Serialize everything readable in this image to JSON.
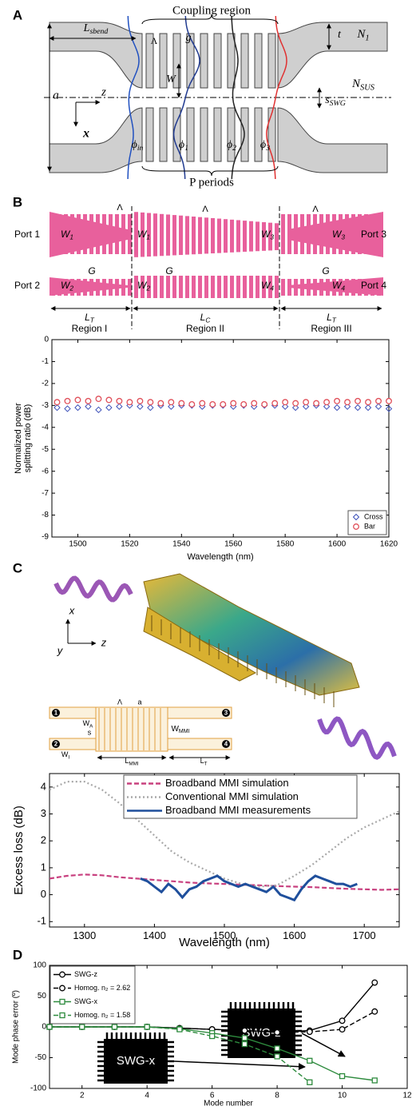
{
  "diagram_a": {
    "panel": "A",
    "coupling_region": "Coupling region",
    "l_sbend": [
      "L",
      "sbend"
    ],
    "lambda": "Λ",
    "g": "g",
    "t": "t",
    "n1": [
      "N",
      "1"
    ],
    "nsus": [
      "N",
      "SUS"
    ],
    "a": "a",
    "z": "z",
    "x": "x",
    "w": "W",
    "sswg": [
      "s",
      "SWG"
    ],
    "phi_in": [
      "ϕ",
      "in"
    ],
    "phi_1": [
      "ϕ",
      "1"
    ],
    "phi_2": [
      "ϕ",
      "2"
    ],
    "phi_3": [
      "ϕ",
      "3"
    ],
    "p_periods": "P periods"
  },
  "diagram_b": {
    "panel": "B",
    "port1": "Port 1",
    "port2": "Port 2",
    "port3": "Port 3",
    "port4": "Port 4",
    "w1": [
      "W",
      "1"
    ],
    "w2": [
      "W",
      "2"
    ],
    "w3": [
      "W",
      "3"
    ],
    "w4": [
      "W",
      "4"
    ],
    "g": "G",
    "lambda": "Λ",
    "lt": [
      "L",
      "T"
    ],
    "lc": [
      "L",
      "C"
    ],
    "region1": "Region I",
    "region2": "Region II",
    "region3": "Region III"
  },
  "diagram_c": {
    "panel": "C",
    "x": "x",
    "y": "y",
    "z": "z",
    "lambda": "Λ",
    "a": "a",
    "wa": [
      "W",
      "A"
    ],
    "s": "s",
    "wmmi": [
      "W",
      "MMI"
    ],
    "wi": [
      "W",
      "I"
    ],
    "lmmi": [
      "L",
      "MMI"
    ],
    "lt": [
      "L",
      "T"
    ],
    "ports": [
      "1",
      "2",
      "3",
      "4"
    ]
  },
  "chart_data": [
    {
      "type": "scatter",
      "xlabel": "Wavelength (nm)",
      "ylabel": [
        "Normalized power",
        "splitting ratio (dB)"
      ],
      "xlim": [
        1490,
        1620
      ],
      "ylim": [
        -9,
        0
      ],
      "xticks": [
        1500,
        1520,
        1540,
        1560,
        1580,
        1600,
        1620
      ],
      "yticks": [
        -9,
        -8,
        -7,
        -6,
        -5,
        -4,
        -3,
        -2,
        -1,
        0
      ],
      "legend": "lower right",
      "x": [
        1492,
        1496,
        1500,
        1504,
        1508,
        1512,
        1516,
        1520,
        1524,
        1528,
        1532,
        1536,
        1540,
        1544,
        1548,
        1552,
        1556,
        1560,
        1564,
        1568,
        1572,
        1576,
        1580,
        1584,
        1588,
        1592,
        1596,
        1600,
        1604,
        1608,
        1612,
        1616,
        1620
      ],
      "series": [
        {
          "name": "Cross",
          "color": "#3b4fb8",
          "marker": "diamond",
          "style": "none",
          "values": [
            -3.1,
            -3.15,
            -3.1,
            -3.05,
            -3.2,
            -3.1,
            -3.05,
            -3.0,
            -3.05,
            -3.1,
            -3.0,
            -3.05,
            -3.0,
            -3.0,
            -3.05,
            -3.0,
            -3.0,
            -3.05,
            -3.0,
            -3.05,
            -3.0,
            -3.0,
            -3.05,
            -3.1,
            -3.05,
            -3.0,
            -3.05,
            -3.1,
            -3.05,
            -3.1,
            -3.1,
            -3.05,
            -3.15
          ]
        },
        {
          "name": "Bar",
          "color": "#e0505a",
          "marker": "circle",
          "style": "none",
          "values": [
            -2.85,
            -2.8,
            -2.75,
            -2.8,
            -2.7,
            -2.75,
            -2.8,
            -2.85,
            -2.8,
            -2.85,
            -2.9,
            -2.85,
            -2.9,
            -2.95,
            -2.9,
            -2.95,
            -2.95,
            -2.9,
            -2.95,
            -2.9,
            -2.95,
            -2.9,
            -2.85,
            -2.9,
            -2.85,
            -2.9,
            -2.85,
            -2.8,
            -2.85,
            -2.8,
            -2.85,
            -2.8,
            -2.8
          ]
        }
      ]
    },
    {
      "type": "line",
      "xlabel": "Wavelength (nm)",
      "ylabel": "Excess loss (dB)",
      "xlim": [
        1250,
        1750
      ],
      "ylim": [
        -1.2,
        4.5
      ],
      "xticks": [
        1300,
        1400,
        1500,
        1600,
        1700
      ],
      "yticks": [
        -1,
        0,
        1,
        2,
        3,
        4
      ],
      "legend": "upper center",
      "series": [
        {
          "name": "Broadband MMI simulation",
          "color": "#c8407f",
          "style": "dashed",
          "x": [
            1250,
            1275,
            1300,
            1325,
            1350,
            1375,
            1400,
            1425,
            1450,
            1475,
            1500,
            1525,
            1550,
            1575,
            1600,
            1625,
            1650,
            1675,
            1700,
            1725,
            1750
          ],
          "values": [
            0.6,
            0.7,
            0.75,
            0.72,
            0.65,
            0.6,
            0.55,
            0.5,
            0.45,
            0.42,
            0.4,
            0.37,
            0.35,
            0.32,
            0.3,
            0.28,
            0.25,
            0.22,
            0.2,
            0.18,
            0.2
          ]
        },
        {
          "name": "Conventional MMI simulation",
          "color": "#a8a8a8",
          "style": "dotted",
          "x": [
            1250,
            1275,
            1300,
            1325,
            1350,
            1375,
            1400,
            1425,
            1450,
            1475,
            1500,
            1525,
            1550,
            1575,
            1600,
            1625,
            1650,
            1675,
            1700,
            1725,
            1750
          ],
          "values": [
            3.9,
            4.2,
            4.2,
            3.9,
            3.4,
            2.8,
            2.2,
            1.6,
            1.2,
            0.9,
            0.6,
            0.4,
            0.3,
            0.35,
            0.7,
            1.1,
            1.6,
            2.1,
            2.5,
            2.8,
            3.1
          ]
        },
        {
          "name": "Broadband MMI measurements",
          "color": "#1f4f9c",
          "style": "solid",
          "x": [
            1380,
            1390,
            1400,
            1410,
            1420,
            1430,
            1440,
            1450,
            1460,
            1470,
            1480,
            1490,
            1500,
            1510,
            1520,
            1530,
            1540,
            1550,
            1560,
            1570,
            1580,
            1590,
            1600,
            1610,
            1620,
            1630,
            1640,
            1650,
            1660,
            1670,
            1680,
            1690
          ],
          "values": [
            0.6,
            0.5,
            0.3,
            0.1,
            0.4,
            0.2,
            -0.1,
            0.2,
            0.3,
            0.5,
            0.6,
            0.7,
            0.5,
            0.4,
            0.3,
            0.4,
            0.3,
            0.2,
            0.1,
            0.3,
            0.0,
            -0.1,
            -0.2,
            0.2,
            0.5,
            0.7,
            0.6,
            0.5,
            0.4,
            0.4,
            0.3,
            0.4
          ]
        }
      ]
    },
    {
      "type": "line",
      "panel": "D",
      "xlabel": "Mode number",
      "ylabel": "Mode phase error (º)",
      "xlim": [
        1,
        12
      ],
      "ylim": [
        -100,
        100
      ],
      "xticks": [
        2,
        4,
        6,
        8,
        10,
        12
      ],
      "yticks": [
        -100,
        -50,
        0,
        50,
        100
      ],
      "legend": "upper left",
      "annotations": [
        "SWG-z",
        "SWG-x"
      ],
      "x": [
        1,
        2,
        3,
        4,
        5,
        6,
        7,
        8,
        9,
        10,
        11
      ],
      "series": [
        {
          "name": "SWG-z",
          "color": "#000000",
          "style": "solid",
          "marker": "circle",
          "values": [
            0,
            0,
            0,
            0,
            -2,
            -4,
            -6,
            -8,
            -6,
            10,
            72
          ]
        },
        {
          "name": "Homog. n₂ = 2.62",
          "color": "#000000",
          "style": "dashed",
          "marker": "circle",
          "values": [
            0,
            0,
            0,
            0,
            -2,
            -4,
            -6,
            -9,
            -8,
            -4,
            25
          ]
        },
        {
          "name": "SWG-x",
          "color": "#2e8b3e",
          "style": "solid",
          "marker": "square",
          "values": [
            0,
            0,
            0,
            0,
            -3,
            -10,
            -18,
            -35,
            -55,
            -80,
            -87
          ]
        },
        {
          "name": "Homog. n₂ = 1.58",
          "color": "#2e8b3e",
          "style": "dashed",
          "marker": "square",
          "values": [
            0,
            0,
            0,
            0,
            -4,
            -15,
            -28,
            -48,
            -90,
            null,
            null
          ]
        }
      ]
    }
  ]
}
